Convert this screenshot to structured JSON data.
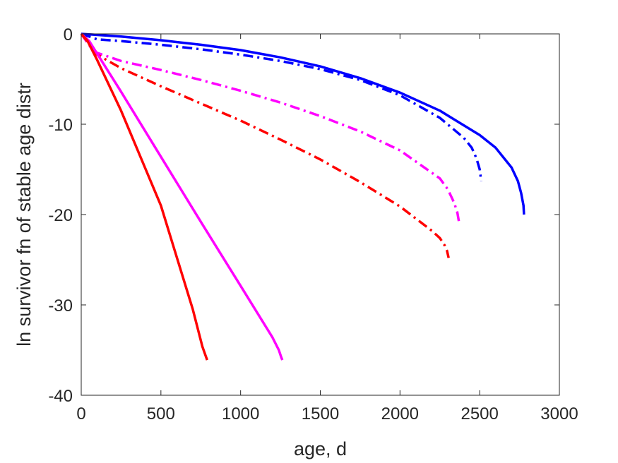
{
  "chart_data": {
    "type": "line",
    "title": "",
    "xlabel": "age, d",
    "ylabel": "ln survivor fn of stable age distr",
    "xlim": [
      0,
      3000
    ],
    "ylim": [
      -40,
      0
    ],
    "xticks": [
      0,
      500,
      1000,
      1500,
      2000,
      2500,
      3000
    ],
    "yticks": [
      0,
      -10,
      -20,
      -30,
      -40
    ],
    "xtick_labels": [
      "0",
      "500",
      "1000",
      "1500",
      "2000",
      "2500",
      "3000"
    ],
    "ytick_labels": [
      "0",
      "-10",
      "-20",
      "-30",
      "-40"
    ],
    "grid": false,
    "legend": null,
    "series": [
      {
        "color": "#0000ff",
        "style": "solid",
        "x": [
          0,
          250,
          500,
          750,
          1000,
          1250,
          1500,
          1750,
          2000,
          2250,
          2500,
          2600,
          2700,
          2740,
          2760,
          2775,
          2778
        ],
        "y": [
          0,
          -0.3,
          -0.7,
          -1.2,
          -1.8,
          -2.6,
          -3.6,
          -4.9,
          -6.5,
          -8.5,
          -11.2,
          -12.6,
          -14.8,
          -16.3,
          -17.6,
          -19.0,
          -20.0
        ]
      },
      {
        "color": "#0000ff",
        "style": "dashdot",
        "x": [
          0,
          100,
          250,
          500,
          750,
          1000,
          1250,
          1500,
          1750,
          2000,
          2250,
          2400,
          2450,
          2480,
          2500,
          2510
        ],
        "y": [
          0,
          -0.6,
          -0.8,
          -1.2,
          -1.7,
          -2.3,
          -3.0,
          -3.9,
          -5.1,
          -6.8,
          -9.3,
          -11.5,
          -12.6,
          -13.8,
          -15.0,
          -16.3
        ]
      },
      {
        "color": "#ff00ff",
        "style": "dashdot",
        "x": [
          0,
          60,
          100,
          250,
          500,
          750,
          1000,
          1250,
          1500,
          1750,
          2000,
          2250,
          2300,
          2340,
          2360,
          2370
        ],
        "y": [
          0,
          -1.5,
          -2.1,
          -3.0,
          -4.0,
          -5.1,
          -6.3,
          -7.6,
          -9.1,
          -10.8,
          -12.9,
          -16.0,
          -17.2,
          -18.7,
          -19.8,
          -20.8
        ]
      },
      {
        "color": "#ff0000",
        "style": "dashdot",
        "x": [
          0,
          60,
          100,
          250,
          500,
          750,
          1000,
          1250,
          1500,
          1750,
          2000,
          2200,
          2250,
          2280,
          2295,
          2305
        ],
        "y": [
          0,
          -1.3,
          -2.3,
          -3.8,
          -5.8,
          -7.7,
          -9.6,
          -11.7,
          -13.9,
          -16.4,
          -19.1,
          -21.8,
          -22.6,
          -23.4,
          -24.0,
          -24.8
        ]
      },
      {
        "color": "#ff00ff",
        "style": "solid",
        "x": [
          0,
          50,
          250,
          500,
          750,
          1000,
          1200,
          1240,
          1255,
          1262
        ],
        "y": [
          0,
          -0.8,
          -6.4,
          -13.6,
          -20.8,
          -27.9,
          -33.6,
          -35.0,
          -35.8,
          -36.1
        ]
      },
      {
        "color": "#ff0000",
        "style": "solid",
        "x": [
          0,
          40,
          100,
          250,
          500,
          700,
          760,
          780,
          790
        ],
        "y": [
          0,
          -0.8,
          -2.9,
          -8.5,
          -19.0,
          -30.5,
          -34.6,
          -35.6,
          -36.1
        ]
      }
    ]
  }
}
